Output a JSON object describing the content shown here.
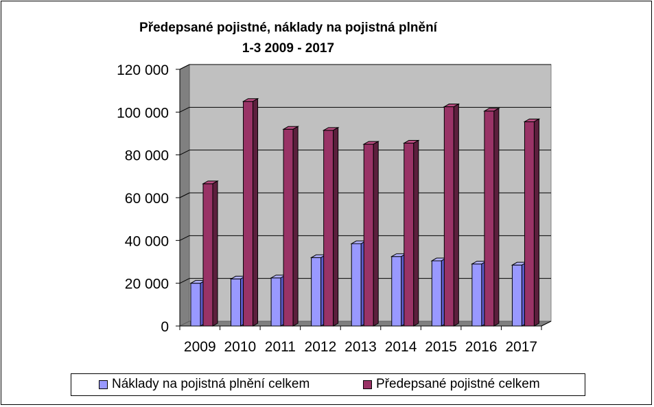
{
  "chart_data": {
    "type": "bar",
    "title_line1": "Předepsané pojistné, náklady na pojistná plnění",
    "title_line2": "1-3 2009 - 2017",
    "categories": [
      "2009",
      "2010",
      "2011",
      "2012",
      "2013",
      "2014",
      "2015",
      "2016",
      "2017"
    ],
    "series": [
      {
        "name": "Náklady na pojistná plnění celkem",
        "color": "#9999ff",
        "values": [
          20000,
          22000,
          22500,
          32000,
          38500,
          32500,
          30500,
          29000,
          28500
        ]
      },
      {
        "name": "Předepsané pojistné celkem",
        "color": "#993366",
        "values": [
          66500,
          105000,
          92000,
          91500,
          85000,
          85500,
          102500,
          100500,
          95500
        ]
      }
    ],
    "ylim": [
      0,
      120000
    ],
    "yticks": [
      0,
      20000,
      40000,
      60000,
      80000,
      100000,
      120000
    ],
    "ytick_labels": [
      "0",
      "20 000",
      "40 000",
      "60 000",
      "80 000",
      "100 000",
      "120 000"
    ],
    "grid": true,
    "legend_position": "bottom"
  }
}
